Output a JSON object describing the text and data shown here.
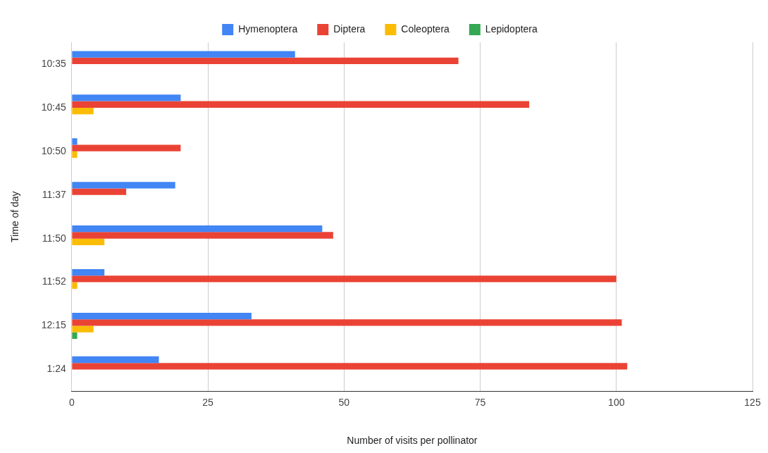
{
  "chart_data": {
    "type": "bar",
    "orientation": "horizontal",
    "categories": [
      "10:35",
      "10:45",
      "10:50",
      "11:37",
      "11:50",
      "11:52",
      "12:15",
      "1:24"
    ],
    "series": [
      {
        "name": "Hymenoptera",
        "color": "#4285f4",
        "values": [
          41,
          20,
          1,
          19,
          46,
          6,
          33,
          16
        ]
      },
      {
        "name": "Diptera",
        "color": "#ea4335",
        "values": [
          71,
          84,
          20,
          10,
          48,
          100,
          101,
          102
        ]
      },
      {
        "name": "Coleoptera",
        "color": "#fbbc04",
        "values": [
          0,
          4,
          1,
          0,
          6,
          1,
          4,
          0
        ]
      },
      {
        "name": "Lepidoptera",
        "color": "#34a853",
        "values": [
          0,
          0,
          0,
          0,
          0,
          0,
          1,
          0
        ]
      }
    ],
    "xlabel": "Number of visits per pollinator",
    "ylabel": "Time of day",
    "xlim": [
      0,
      125
    ],
    "xticks": [
      0,
      25,
      50,
      75,
      100,
      125
    ],
    "grid": "x",
    "legend": "top"
  }
}
